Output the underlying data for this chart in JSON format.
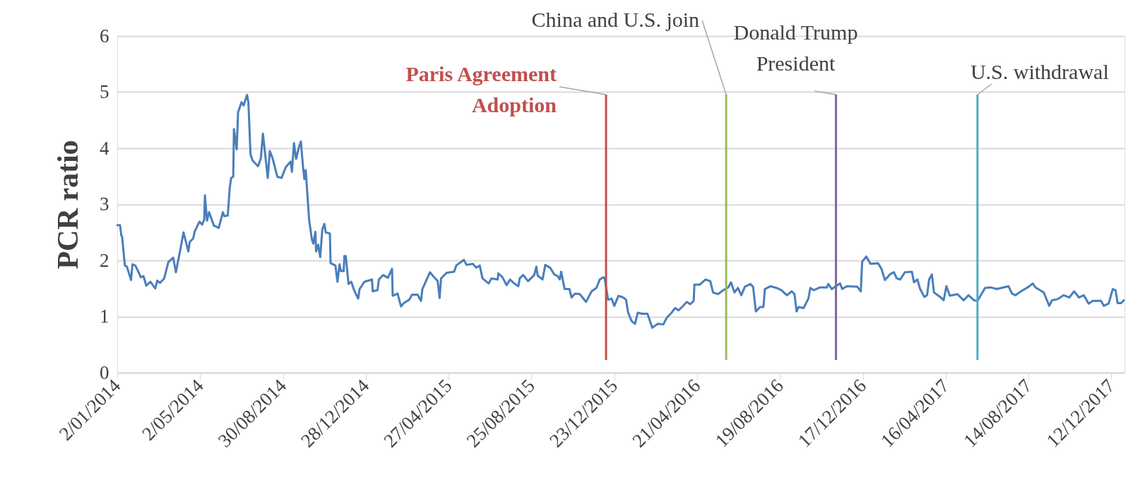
{
  "chart_data": {
    "type": "line",
    "ylabel": "PCR ratio",
    "xlim": [
      "2014-01-02",
      "2017-12-31"
    ],
    "ylim": [
      0,
      6
    ],
    "yticks": [
      0,
      1,
      2,
      3,
      4,
      5,
      6
    ],
    "xticks": [
      {
        "value": "2014-01-02",
        "label": "2/01/2014"
      },
      {
        "value": "2014-05-02",
        "label": "2/05/2014"
      },
      {
        "value": "2014-08-30",
        "label": "30/08/2014"
      },
      {
        "value": "2014-12-28",
        "label": "28/12/2014"
      },
      {
        "value": "2015-04-27",
        "label": "27/04/2015"
      },
      {
        "value": "2015-08-25",
        "label": "25/08/2015"
      },
      {
        "value": "2015-12-23",
        "label": "23/12/2015"
      },
      {
        "value": "2016-04-21",
        "label": "21/04/2016"
      },
      {
        "value": "2016-08-19",
        "label": "19/08/2016"
      },
      {
        "value": "2016-12-17",
        "label": "17/12/2016"
      },
      {
        "value": "2017-04-16",
        "label": "16/04/2017"
      },
      {
        "value": "2017-08-14",
        "label": "14/08/2017"
      },
      {
        "value": "2017-12-12",
        "label": "12/12/2017"
      }
    ],
    "grid": "y",
    "legend": false,
    "marker": "none",
    "line_style": "solid",
    "ref_lines": [
      {
        "axis": "x",
        "value": "2015-12-11",
        "label": "Paris Agreement Adoption",
        "color": "#c0504d"
      },
      {
        "axis": "x",
        "value": "2016-06-02",
        "label": "China and U.S. join",
        "color": "#9bbb59"
      },
      {
        "axis": "x",
        "value": "2016-11-08",
        "label": "Donald Trump President",
        "color": "#8064a2"
      },
      {
        "axis": "x",
        "value": "2017-06-01",
        "label": "U.S. withdrawal",
        "color": "#4bacc6"
      }
    ],
    "series": [
      {
        "color": "#4a7ebb",
        "x": [
          "2014-01-02",
          "2014-01-06",
          "2014-01-08",
          "2014-01-09",
          "2014-01-13",
          "2014-01-16",
          "2014-01-22",
          "2014-01-24",
          "2014-01-28",
          "2014-02-02",
          "2014-02-05",
          "2014-02-09",
          "2014-02-13",
          "2014-02-19",
          "2014-02-26",
          "2014-03-01",
          "2014-03-05",
          "2014-03-11",
          "2014-03-17",
          "2014-03-24",
          "2014-03-28",
          "2014-03-30",
          "2014-04-03",
          "2014-04-08",
          "2014-04-15",
          "2014-04-17",
          "2014-04-22",
          "2014-04-24",
          "2014-05-01",
          "2014-05-05",
          "2014-05-08",
          "2014-05-09",
          "2014-05-12",
          "2014-05-15",
          "2014-05-22",
          "2014-05-29",
          "2014-06-04",
          "2014-06-06",
          "2014-06-11",
          "2014-06-14",
          "2014-06-16",
          "2014-06-19",
          "2014-06-20",
          "2014-06-24",
          "2014-06-26",
          "2014-07-01",
          "2014-07-04",
          "2014-07-09",
          "2014-07-11",
          "2014-07-14",
          "2014-07-17",
          "2014-07-25",
          "2014-07-29",
          "2014-08-01",
          "2014-08-08",
          "2014-08-11",
          "2014-08-15",
          "2014-08-19",
          "2014-08-22",
          "2014-08-28",
          "2014-09-03",
          "2014-09-10",
          "2014-09-12",
          "2014-09-15",
          "2014-09-18",
          "2014-09-22",
          "2014-09-25",
          "2014-09-28",
          "2014-09-30",
          "2014-10-02",
          "2014-10-07",
          "2014-10-11",
          "2014-10-13",
          "2014-10-16",
          "2014-10-17",
          "2014-10-20",
          "2014-10-23",
          "2014-10-26",
          "2014-10-29",
          "2014-10-31",
          "2014-11-06",
          "2014-11-07",
          "2014-11-14",
          "2014-11-17",
          "2014-11-20",
          "2014-11-22",
          "2014-11-26",
          "2014-11-27",
          "2014-11-29",
          "2014-12-03",
          "2014-12-07",
          "2014-12-11",
          "2014-12-17",
          "2014-12-19",
          "2014-12-26",
          "2015-01-06",
          "2015-01-07",
          "2015-01-14",
          "2015-01-16",
          "2015-01-22",
          "2015-01-29",
          "2015-02-04",
          "2015-02-05",
          "2015-02-12",
          "2015-02-17",
          "2015-02-21",
          "2015-03-01",
          "2015-03-05",
          "2015-03-13",
          "2015-03-18",
          "2015-03-20",
          "2015-03-24",
          "2015-03-31",
          "2015-04-06",
          "2015-04-09",
          "2015-04-11",
          "2015-04-14",
          "2015-04-16",
          "2015-04-24",
          "2015-05-05",
          "2015-05-08",
          "2015-05-19",
          "2015-05-23",
          "2015-06-01",
          "2015-06-06",
          "2015-06-11",
          "2015-06-15",
          "2015-06-24",
          "2015-06-28",
          "2015-07-07",
          "2015-07-08",
          "2015-07-14",
          "2015-07-20",
          "2015-07-25",
          "2015-07-31",
          "2015-08-06",
          "2015-08-08",
          "2015-08-13",
          "2015-08-20",
          "2015-08-29",
          "2015-09-01",
          "2015-09-03",
          "2015-09-10",
          "2015-09-14",
          "2015-09-21",
          "2015-09-27",
          "2015-10-02",
          "2015-10-05",
          "2015-10-07",
          "2015-10-12",
          "2015-10-19",
          "2015-10-22",
          "2015-10-27",
          "2015-11-03",
          "2015-11-07",
          "2015-11-12",
          "2015-11-20",
          "2015-11-27",
          "2015-12-02",
          "2015-12-07",
          "2015-12-09",
          "2015-12-14",
          "2015-12-19",
          "2015-12-23",
          "2015-12-29",
          "2016-01-05",
          "2016-01-09",
          "2016-01-12",
          "2016-01-17",
          "2016-01-22",
          "2016-01-26",
          "2016-02-01",
          "2016-02-09",
          "2016-02-16",
          "2016-02-24",
          "2016-03-03",
          "2016-03-08",
          "2016-03-15",
          "2016-03-20",
          "2016-03-25",
          "2016-03-30",
          "2016-04-06",
          "2016-04-11",
          "2016-04-16",
          "2016-04-17",
          "2016-04-25",
          "2016-05-03",
          "2016-05-10",
          "2016-05-14",
          "2016-05-21",
          "2016-05-29",
          "2016-06-05",
          "2016-06-09",
          "2016-06-14",
          "2016-06-19",
          "2016-06-24",
          "2016-06-29",
          "2016-07-07",
          "2016-07-11",
          "2016-07-15",
          "2016-07-21",
          "2016-07-26",
          "2016-07-28",
          "2016-08-05",
          "2016-08-14",
          "2016-08-21",
          "2016-08-29",
          "2016-09-05",
          "2016-09-09",
          "2016-09-12",
          "2016-09-15",
          "2016-09-22",
          "2016-09-25",
          "2016-09-29",
          "2016-10-02",
          "2016-10-07",
          "2016-10-16",
          "2016-10-26",
          "2016-10-28",
          "2016-11-02",
          "2016-11-14",
          "2016-11-17",
          "2016-11-24",
          "2016-12-09",
          "2016-12-14",
          "2016-12-16",
          "2016-12-22",
          "2016-12-28",
          "2017-01-08",
          "2017-01-13",
          "2017-01-18",
          "2017-01-26",
          "2017-01-31",
          "2017-02-04",
          "2017-02-09",
          "2017-02-16",
          "2017-02-26",
          "2017-03-01",
          "2017-03-06",
          "2017-03-10",
          "2017-03-16",
          "2017-03-20",
          "2017-03-23",
          "2017-03-27",
          "2017-03-30",
          "2017-04-08",
          "2017-04-13",
          "2017-04-17",
          "2017-04-22",
          "2017-05-03",
          "2017-05-12",
          "2017-05-19",
          "2017-05-27",
          "2017-06-01",
          "2017-06-12",
          "2017-06-20",
          "2017-06-29",
          "2017-07-16",
          "2017-07-21",
          "2017-07-26",
          "2017-08-03",
          "2017-08-14",
          "2017-08-20",
          "2017-08-24",
          "2017-09-05",
          "2017-09-10",
          "2017-09-13",
          "2017-09-17",
          "2017-09-25",
          "2017-10-04",
          "2017-10-12",
          "2017-10-19",
          "2017-10-26",
          "2017-11-02",
          "2017-11-09",
          "2017-11-15",
          "2017-11-27",
          "2017-12-01",
          "2017-12-08",
          "2017-12-14",
          "2017-12-18",
          "2017-12-21",
          "2017-12-26",
          "2017-12-30"
        ],
        "values": [
          2.63,
          2.63,
          2.44,
          2.43,
          1.91,
          1.89,
          1.65,
          1.93,
          1.91,
          1.79,
          1.7,
          1.72,
          1.55,
          1.62,
          1.5,
          1.64,
          1.6,
          1.68,
          1.97,
          2.05,
          1.79,
          1.92,
          2.17,
          2.5,
          2.16,
          2.33,
          2.39,
          2.51,
          2.69,
          2.64,
          2.73,
          3.16,
          2.71,
          2.86,
          2.62,
          2.58,
          2.86,
          2.79,
          2.8,
          3.3,
          3.47,
          3.49,
          4.34,
          3.98,
          4.64,
          4.82,
          4.76,
          4.95,
          4.81,
          3.89,
          3.78,
          3.68,
          3.82,
          4.26,
          3.47,
          3.95,
          3.82,
          3.63,
          3.49,
          3.47,
          3.66,
          3.76,
          3.58,
          4.09,
          3.81,
          4.01,
          4.12,
          3.68,
          3.45,
          3.61,
          2.71,
          2.37,
          2.3,
          2.51,
          2.16,
          2.28,
          2.06,
          2.55,
          2.65,
          2.5,
          2.48,
          1.95,
          1.91,
          1.62,
          1.93,
          1.81,
          1.81,
          2.08,
          2.08,
          1.58,
          1.62,
          1.47,
          1.32,
          1.49,
          1.62,
          1.66,
          1.45,
          1.47,
          1.66,
          1.74,
          1.69,
          1.85,
          1.37,
          1.41,
          1.18,
          1.24,
          1.3,
          1.39,
          1.39,
          1.28,
          1.49,
          1.6,
          1.79,
          1.7,
          1.66,
          1.64,
          1.33,
          1.68,
          1.78,
          1.8,
          1.91,
          2.01,
          1.92,
          1.94,
          1.87,
          1.91,
          1.68,
          1.59,
          1.68,
          1.66,
          1.77,
          1.7,
          1.56,
          1.66,
          1.59,
          1.54,
          1.68,
          1.74,
          1.63,
          1.74,
          1.89,
          1.73,
          1.66,
          1.92,
          1.87,
          1.75,
          1.72,
          1.66,
          1.8,
          1.49,
          1.49,
          1.34,
          1.41,
          1.4,
          1.34,
          1.26,
          1.45,
          1.51,
          1.66,
          1.7,
          1.68,
          1.3,
          1.32,
          1.19,
          1.37,
          1.34,
          1.3,
          1.07,
          0.92,
          0.87,
          1.07,
          1.05,
          1.05,
          0.8,
          0.87,
          0.86,
          0.98,
          1.07,
          1.15,
          1.11,
          1.17,
          1.26,
          1.22,
          1.28,
          1.57,
          1.57,
          1.66,
          1.63,
          1.43,
          1.4,
          1.47,
          1.52,
          1.61,
          1.43,
          1.51,
          1.38,
          1.53,
          1.58,
          1.53,
          1.09,
          1.17,
          1.17,
          1.49,
          1.54,
          1.51,
          1.47,
          1.38,
          1.45,
          1.4,
          1.09,
          1.17,
          1.15,
          1.22,
          1.32,
          1.51,
          1.47,
          1.52,
          1.52,
          1.58,
          1.49,
          1.59,
          1.49,
          1.54,
          1.53,
          1.45,
          1.98,
          2.07,
          1.94,
          1.95,
          1.85,
          1.65,
          1.76,
          1.79,
          1.68,
          1.66,
          1.79,
          1.8,
          1.61,
          1.66,
          1.49,
          1.35,
          1.38,
          1.66,
          1.75,
          1.43,
          1.35,
          1.29,
          1.54,
          1.37,
          1.4,
          1.29,
          1.38,
          1.29,
          1.28,
          1.51,
          1.52,
          1.49,
          1.54,
          1.41,
          1.38,
          1.45,
          1.53,
          1.59,
          1.52,
          1.43,
          1.28,
          1.19,
          1.29,
          1.31,
          1.38,
          1.34,
          1.45,
          1.34,
          1.38,
          1.23,
          1.28,
          1.28,
          1.19,
          1.23,
          1.49,
          1.47,
          1.24,
          1.24,
          1.29
        ]
      }
    ]
  }
}
